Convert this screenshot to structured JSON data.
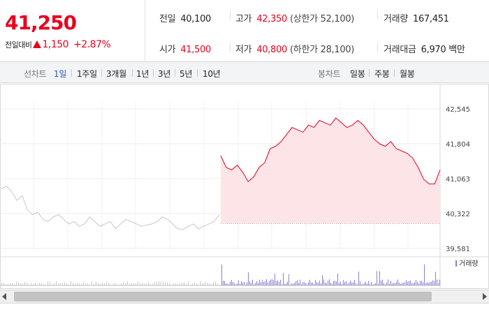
{
  "quote": {
    "current_price": "41,250",
    "change_label": "전일대비",
    "change_value": "1,150",
    "change_percent": "+2.87%",
    "direction": "up",
    "up_color": "#e8001e"
  },
  "stats": {
    "prev_close": {
      "label": "전일",
      "value": "40,100"
    },
    "high": {
      "label": "고가",
      "value": "42,350",
      "limit_text": "(상한가 52,100)"
    },
    "volume": {
      "label": "거래량",
      "value": "167,451"
    },
    "open": {
      "label": "시가",
      "value": "41,500"
    },
    "low": {
      "label": "저가",
      "value": "40,800",
      "limit_text": "(하한가 28,100)"
    },
    "trade_value": {
      "label": "거래대금",
      "value": "6,970 백만"
    }
  },
  "tabs": {
    "line_group": "선차트",
    "line_periods": [
      "1일",
      "1주일",
      "3개월",
      "1년",
      "3년",
      "5년",
      "10년"
    ],
    "active_period": "1일",
    "candle_group": "봉차트",
    "candle_periods": [
      "일봉",
      "주봉",
      "월봉"
    ]
  },
  "chart_data": {
    "type": "line",
    "title": "",
    "y_ticks": [
      "42,545",
      "41,804",
      "41,063",
      "40,322",
      "39,581"
    ],
    "ylim": [
      39581,
      42545
    ],
    "prev_close_reference": 40100,
    "grid": true,
    "series": [
      {
        "name": "",
        "color": "#c8c8c8",
        "values": [
          40850,
          40900,
          40780,
          40600,
          40700,
          40400,
          40300,
          40350,
          40200,
          40150,
          40250,
          40300,
          40200,
          40100,
          40150,
          40050,
          40100,
          40250,
          40150,
          40050,
          40100,
          40150,
          40000,
          40100,
          40200,
          40150,
          40100,
          40050,
          40080,
          40100,
          40150,
          40250,
          40200,
          40100,
          40000,
          39980,
          40050,
          40100,
          40000,
          40050,
          40100,
          40150,
          40300
        ]
      },
      {
        "name": "",
        "color": "#e8001e",
        "values": [
          41550,
          41300,
          41250,
          41350,
          41200,
          41000,
          41100,
          41300,
          41400,
          41700,
          41750,
          41850,
          42000,
          42150,
          42100,
          42050,
          42200,
          42150,
          42300,
          42250,
          42200,
          42350,
          42250,
          42150,
          42200,
          42300,
          42200,
          42050,
          41900,
          41800,
          41750,
          41850,
          41700,
          41650,
          41600,
          41500,
          41300,
          41050,
          40950,
          40950,
          41250
        ]
      }
    ],
    "volume_legend": "거래량",
    "volume_color": "#8b7fd4"
  }
}
